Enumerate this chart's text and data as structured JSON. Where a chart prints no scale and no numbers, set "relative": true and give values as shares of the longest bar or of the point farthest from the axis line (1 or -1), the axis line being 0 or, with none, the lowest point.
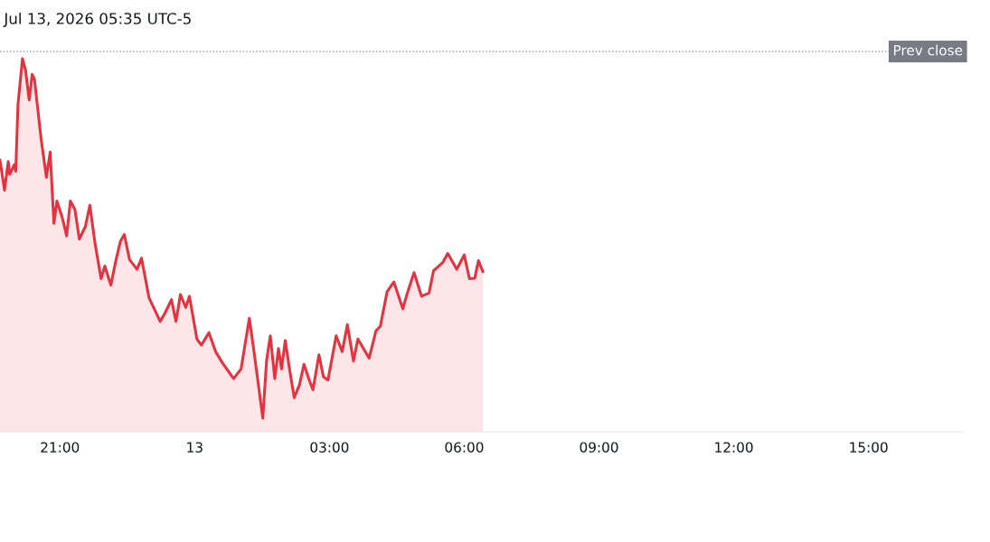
{
  "chart_data": {
    "type": "area",
    "title": "Jul 13, 2026 05:35 UTC-5",
    "relative": true,
    "x": [
      "2026-07-12T19:40",
      "2026-07-12T19:46",
      "2026-07-12T19:51",
      "2026-07-12T19:53",
      "2026-07-12T19:59",
      "2026-07-12T20:01",
      "2026-07-12T20:04",
      "2026-07-12T20:10",
      "2026-07-12T20:14",
      "2026-07-12T20:19",
      "2026-07-12T20:23",
      "2026-07-12T20:26",
      "2026-07-12T20:35",
      "2026-07-12T20:42",
      "2026-07-12T20:47",
      "2026-07-12T20:52",
      "2026-07-12T20:56",
      "2026-07-12T21:03",
      "2026-07-12T21:09",
      "2026-07-12T21:14",
      "2026-07-12T21:20",
      "2026-07-12T21:26",
      "2026-07-12T21:34",
      "2026-07-12T21:40",
      "2026-07-12T21:47",
      "2026-07-12T21:55",
      "2026-07-12T22:00",
      "2026-07-12T22:08",
      "2026-07-12T22:15",
      "2026-07-12T22:21",
      "2026-07-12T22:26",
      "2026-07-12T22:33",
      "2026-07-12T22:43",
      "2026-07-12T22:49",
      "2026-07-12T22:59",
      "2026-07-12T23:14",
      "2026-07-12T23:20",
      "2026-07-12T23:29",
      "2026-07-12T23:35",
      "2026-07-12T23:41",
      "2026-07-12T23:48",
      "2026-07-12T23:53",
      "2026-07-13T00:03",
      "2026-07-13T00:09",
      "2026-07-13T00:19",
      "2026-07-13T00:28",
      "2026-07-13T00:37",
      "2026-07-13T00:52",
      "2026-07-13T01:02",
      "2026-07-13T01:13",
      "2026-07-13T01:19",
      "2026-07-13T01:31",
      "2026-07-13T01:36",
      "2026-07-13T01:41",
      "2026-07-13T01:47",
      "2026-07-13T01:52",
      "2026-07-13T01:56",
      "2026-07-13T02:01",
      "2026-07-13T02:07",
      "2026-07-13T02:13",
      "2026-07-13T02:20",
      "2026-07-13T02:26",
      "2026-07-13T02:33",
      "2026-07-13T02:38",
      "2026-07-13T02:46",
      "2026-07-13T02:52",
      "2026-07-13T02:58",
      "2026-07-13T03:09",
      "2026-07-13T03:17",
      "2026-07-13T03:24",
      "2026-07-13T03:32",
      "2026-07-13T03:38",
      "2026-07-13T03:53",
      "2026-07-13T04:02",
      "2026-07-13T04:08",
      "2026-07-13T04:17",
      "2026-07-13T04:26",
      "2026-07-13T04:38",
      "2026-07-13T04:44",
      "2026-07-13T04:53",
      "2026-07-13T05:03",
      "2026-07-13T05:13",
      "2026-07-13T05:19",
      "2026-07-13T05:31",
      "2026-07-13T05:38",
      "2026-07-13T05:50",
      "2026-07-13T06:00",
      "2026-07-13T06:07",
      "2026-07-13T06:14",
      "2026-07-13T06:19",
      "2026-07-13T06:25"
    ],
    "series": [
      {
        "color": "#e5323f",
        "values": [
          0.718,
          0.634,
          0.714,
          0.678,
          0.705,
          0.687,
          0.872,
          1.0,
          0.969,
          0.885,
          0.956,
          0.943,
          0.775,
          0.67,
          0.74,
          0.542,
          0.604,
          0.559,
          0.507,
          0.604,
          0.581,
          0.498,
          0.533,
          0.592,
          0.485,
          0.388,
          0.423,
          0.37,
          0.441,
          0.493,
          0.511,
          0.441,
          0.414,
          0.445,
          0.335,
          0.269,
          0.291,
          0.33,
          0.269,
          0.344,
          0.308,
          0.339,
          0.22,
          0.203,
          0.238,
          0.185,
          0.154,
          0.11,
          0.137,
          0.278,
          0.189,
          0.0,
          0.159,
          0.229,
          0.11,
          0.194,
          0.137,
          0.216,
          0.132,
          0.057,
          0.093,
          0.15,
          0.106,
          0.079,
          0.176,
          0.115,
          0.106,
          0.229,
          0.185,
          0.26,
          0.159,
          0.22,
          0.167,
          0.242,
          0.256,
          0.352,
          0.379,
          0.304,
          0.348,
          0.405,
          0.339,
          0.348,
          0.41,
          0.432,
          0.458,
          0.414,
          0.454,
          0.388,
          0.389,
          0.438,
          0.407
        ]
      }
    ],
    "xlim": [
      "2026-07-12T19:40",
      "2026-07-13T17:06"
    ],
    "xticks": [
      {
        "value": "2026-07-12T21:00",
        "label": "21:00"
      },
      {
        "value": "2026-07-13T00:00",
        "label": "13"
      },
      {
        "value": "2026-07-13T03:00",
        "label": "03:00"
      },
      {
        "value": "2026-07-13T06:00",
        "label": "06:00"
      },
      {
        "value": "2026-07-13T09:00",
        "label": "09:00"
      },
      {
        "value": "2026-07-13T12:00",
        "label": "12:00"
      },
      {
        "value": "2026-07-13T15:00",
        "label": "15:00"
      }
    ],
    "ref_lines": [
      {
        "axis": "y",
        "value": 1.02,
        "label": "Prev close",
        "color": "#9e9e9e",
        "line_style": "dotted"
      }
    ]
  }
}
